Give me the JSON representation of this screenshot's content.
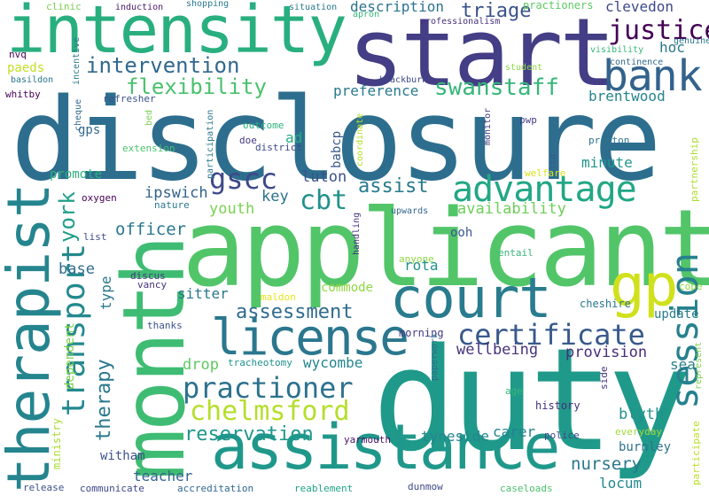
{
  "words": [
    {
      "text": "disclosure",
      "color": "#2d6e8e"
    },
    {
      "text": "applicant",
      "color": "#52c569"
    },
    {
      "text": "duty",
      "color": "#1f9a8a"
    },
    {
      "text": "start",
      "color": "#433e85"
    },
    {
      "text": "intensity",
      "color": "#29af7f"
    },
    {
      "text": "month",
      "color": "#3fbc73"
    },
    {
      "text": "therapist",
      "color": "#25858e"
    },
    {
      "text": "assistance",
      "color": "#1f988b"
    },
    {
      "text": "court",
      "color": "#287c8e"
    },
    {
      "text": "license",
      "color": "#2a778e"
    },
    {
      "text": "gp",
      "color": "#d0e11c"
    },
    {
      "text": "bank",
      "color": "#33638d"
    },
    {
      "text": "transport",
      "color": "#23898e"
    },
    {
      "text": "session",
      "color": "#26818e"
    },
    {
      "text": "advantage",
      "color": "#22a785"
    },
    {
      "text": "justice",
      "color": "#440154"
    },
    {
      "text": "practioner",
      "color": "#2c728e"
    },
    {
      "text": "certificate",
      "color": "#38598c"
    },
    {
      "text": "chelmsford",
      "color": "#b5de2b"
    },
    {
      "text": "intervention",
      "color": "#31688e"
    },
    {
      "text": "reservation",
      "color": "#1f968b"
    },
    {
      "text": "assessment",
      "color": "#2f6b8e"
    },
    {
      "text": "swanstaff",
      "color": "#35b779"
    },
    {
      "text": "flexibility",
      "color": "#4ac16d"
    },
    {
      "text": "gscc",
      "color": "#3e4989"
    },
    {
      "text": "cbt",
      "color": "#21918c"
    },
    {
      "text": "york",
      "color": "#1f9e89"
    },
    {
      "text": "therapy",
      "color": "#2a788e"
    },
    {
      "text": "assist",
      "color": "#297b8e"
    },
    {
      "text": "triage",
      "color": "#3b528b"
    },
    {
      "text": "description",
      "color": "#2c728e"
    },
    {
      "text": "clevedon",
      "color": "#3e4a89"
    },
    {
      "text": "availability",
      "color": "#6ece58"
    },
    {
      "text": "nursery",
      "color": "#2a768e"
    },
    {
      "text": "provision",
      "color": "#472d7b"
    },
    {
      "text": "wellbeing",
      "color": "#46327e"
    },
    {
      "text": "blyth",
      "color": "#21918c"
    },
    {
      "text": "tyneside",
      "color": "#24878e"
    },
    {
      "text": "wycombe",
      "color": "#24868e"
    },
    {
      "text": "officer",
      "color": "#2a788e"
    },
    {
      "text": "youth",
      "color": "#7ad151"
    },
    {
      "text": "luton",
      "color": "#3b528b"
    },
    {
      "text": "key",
      "color": "#2d708e"
    },
    {
      "text": "ipswich",
      "color": "#33638d"
    },
    {
      "text": "preference",
      "color": "#297a8e"
    },
    {
      "text": "brentwood",
      "color": "#25848e"
    },
    {
      "text": "hoc",
      "color": "#2a788e"
    },
    {
      "text": "minute",
      "color": "#1f968b"
    },
    {
      "text": "locum",
      "color": "#24878e"
    },
    {
      "text": "burnley",
      "color": "#2c728e"
    },
    {
      "text": "carer",
      "color": "#25838e"
    },
    {
      "text": "teacher",
      "color": "#32658e"
    },
    {
      "text": "sitter",
      "color": "#2a768e"
    },
    {
      "text": "base",
      "color": "#2f6c8e"
    },
    {
      "text": "commode",
      "color": "#90d743"
    },
    {
      "text": "drop",
      "color": "#5ec962"
    },
    {
      "text": "update",
      "color": "#287d8e"
    },
    {
      "text": "sea",
      "color": "#27808e"
    },
    {
      "text": "rota",
      "color": "#21918c"
    },
    {
      "text": "ooh",
      "color": "#38588c"
    },
    {
      "text": "gps",
      "color": "#31688e"
    },
    {
      "text": "promote",
      "color": "#2db27d"
    },
    {
      "text": "ad",
      "color": "#25ab82"
    },
    {
      "text": "babcp",
      "color": "#38588c"
    },
    {
      "text": "witham",
      "color": "#3b528b"
    },
    {
      "text": "cheshire",
      "color": "#2a768e"
    },
    {
      "text": "type",
      "color": "#2a778e"
    },
    {
      "text": "dependent",
      "color": "#7fd34e"
    },
    {
      "text": "ministry",
      "color": "#a8db34"
    },
    {
      "text": "morning",
      "color": "#443983"
    },
    {
      "text": "tracheotomy",
      "color": "#21918c"
    },
    {
      "text": "history",
      "color": "#472c7a"
    },
    {
      "text": "police",
      "color": "#3e4989"
    },
    {
      "text": "everyday",
      "color": "#a0da39"
    },
    {
      "text": "participate",
      "color": "#bade28"
    },
    {
      "text": "represent",
      "color": "#7fd34e"
    },
    {
      "text": "side",
      "color": "#46327e"
    },
    {
      "text": "age",
      "color": "#35b779"
    },
    {
      "text": "paperwork",
      "color": "#2f6c8e"
    },
    {
      "text": "yarmouth",
      "color": "#471164"
    },
    {
      "text": "release",
      "color": "#3b528b"
    },
    {
      "text": "communicate",
      "color": "#3e4989"
    },
    {
      "text": "accreditation",
      "color": "#31688e"
    },
    {
      "text": "reablement",
      "color": "#20a386"
    },
    {
      "text": "dunmow",
      "color": "#3e4989"
    },
    {
      "text": "caseloads",
      "color": "#4ac16d"
    },
    {
      "text": "thanks",
      "color": "#3b528b"
    },
    {
      "text": "maldon",
      "color": "#e4e419"
    },
    {
      "text": "vancy",
      "color": "#46327e"
    },
    {
      "text": "discus",
      "color": "#453781"
    },
    {
      "text": "nature",
      "color": "#2a788e"
    },
    {
      "text": "oxygen",
      "color": "#440154"
    },
    {
      "text": "list",
      "color": "#3e4989"
    },
    {
      "text": "upwards",
      "color": "#32658e"
    },
    {
      "text": "handling",
      "color": "#46327e"
    },
    {
      "text": "anyone",
      "color": "#8fd744"
    },
    {
      "text": "entail",
      "color": "#35b779"
    },
    {
      "text": "cope",
      "color": "#8fd744"
    },
    {
      "text": "extension",
      "color": "#4ac16d"
    },
    {
      "text": "doe",
      "color": "#443983"
    },
    {
      "text": "district",
      "color": "#3e4989"
    },
    {
      "text": "outcome",
      "color": "#2db27d"
    },
    {
      "text": "participation",
      "color": "#2a788e"
    },
    {
      "text": "bed",
      "color": "#7ad151"
    },
    {
      "text": "coordinate",
      "color": "#b5de2b"
    },
    {
      "text": "monitor",
      "color": "#443983"
    },
    {
      "text": "pwp",
      "color": "#433e85"
    },
    {
      "text": "ltd",
      "color": "#38588c"
    },
    {
      "text": "welfare",
      "color": "#d8e219"
    },
    {
      "text": "preston",
      "color": "#2c728e"
    },
    {
      "text": "partnership",
      "color": "#addc30"
    },
    {
      "text": "refresher",
      "color": "#3b528b"
    },
    {
      "text": "cheque",
      "color": "#31688e"
    },
    {
      "text": "blackburn",
      "color": "#3e4989"
    },
    {
      "text": "student",
      "color": "#8fd744"
    },
    {
      "text": "continence",
      "color": "#31688e"
    },
    {
      "text": "visibility",
      "color": "#35b779"
    },
    {
      "text": "genuine",
      "color": "#2a788e"
    },
    {
      "text": "practioners",
      "color": "#5ec962"
    },
    {
      "text": "professionalism",
      "color": "#46327e"
    },
    {
      "text": "apron",
      "color": "#35b779"
    },
    {
      "text": "situation",
      "color": "#2a788e"
    },
    {
      "text": "shopping",
      "color": "#2a788e"
    },
    {
      "text": "induction",
      "color": "#481769"
    },
    {
      "text": "clinic",
      "color": "#7ad151"
    },
    {
      "text": "incentive",
      "color": "#2a788e"
    },
    {
      "text": "nvq",
      "color": "#440154"
    },
    {
      "text": "paeds",
      "color": "#c0df25"
    },
    {
      "text": "basildon",
      "color": "#2a788e"
    },
    {
      "text": "whitby",
      "color": "#440154"
    }
  ]
}
